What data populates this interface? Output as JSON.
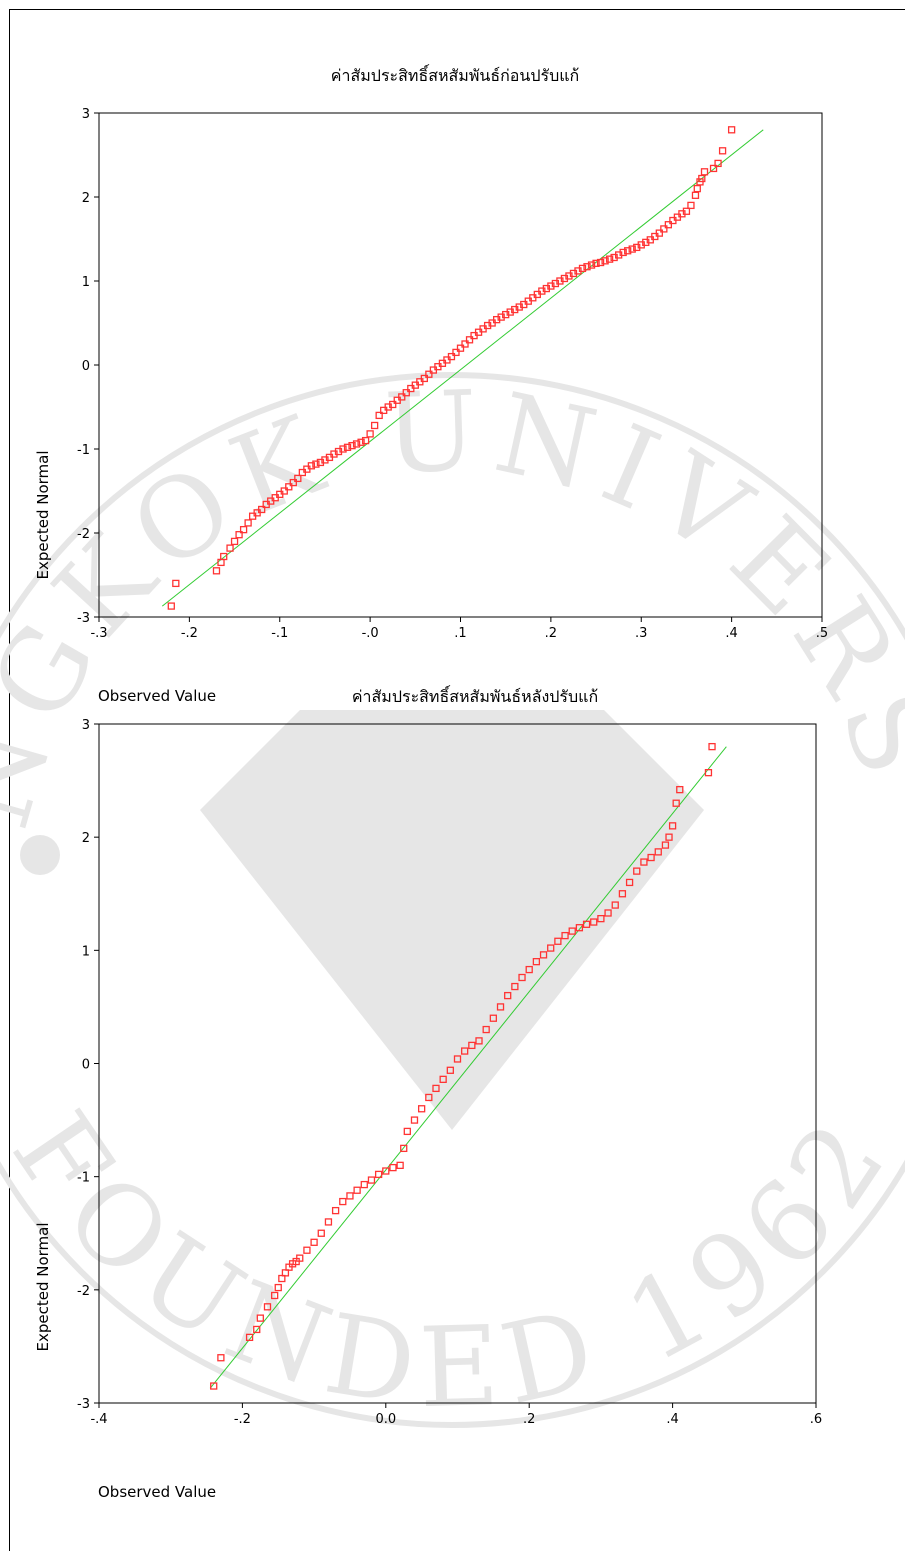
{
  "watermark": {
    "logo_color": "#e6e6e6",
    "text_top": "BANGKOK UNIVERSITY",
    "text_bottom": "FOUNDED 1962"
  },
  "chart_data": [
    {
      "type": "scatter",
      "title": "ค่าสัมประสิทธิ์สหสัมพันธ์ก่อนปรับแก้",
      "xlabel": "Observed Value",
      "ylabel": "Expected Normal",
      "xlim": [
        -0.3,
        0.5
      ],
      "ylim": [
        -3,
        3
      ],
      "xticks": [
        -0.3,
        -0.2,
        -0.1,
        0.0,
        0.1,
        0.2,
        0.3,
        0.4,
        0.5
      ],
      "xtick_labels": [
        "-.3",
        "-.2",
        "-.1",
        "-.0",
        ".1",
        ".2",
        ".3",
        ".4",
        ".5"
      ],
      "yticks": [
        -3,
        -2,
        -1,
        0,
        1,
        2,
        3
      ],
      "ytick_labels": [
        "-3",
        "-2",
        "-1",
        "0",
        "1",
        "2",
        "3"
      ],
      "grid": false,
      "reference_line": {
        "x": [
          -0.23,
          0.435
        ],
        "y": [
          -2.87,
          2.8
        ],
        "color": "#33cc33"
      },
      "marker_color": "#ff3333",
      "points": {
        "x": [
          -0.22,
          -0.215,
          -0.17,
          -0.165,
          -0.162,
          -0.155,
          -0.15,
          -0.145,
          -0.14,
          -0.135,
          -0.13,
          -0.125,
          -0.12,
          -0.115,
          -0.11,
          -0.105,
          -0.1,
          -0.095,
          -0.09,
          -0.085,
          -0.08,
          -0.075,
          -0.07,
          -0.065,
          -0.06,
          -0.055,
          -0.05,
          -0.045,
          -0.04,
          -0.035,
          -0.03,
          -0.025,
          -0.02,
          -0.015,
          -0.01,
          -0.005,
          0.0,
          0.005,
          0.01,
          0.015,
          0.02,
          0.025,
          0.03,
          0.035,
          0.04,
          0.045,
          0.05,
          0.055,
          0.06,
          0.065,
          0.07,
          0.075,
          0.08,
          0.085,
          0.09,
          0.095,
          0.1,
          0.105,
          0.11,
          0.115,
          0.12,
          0.125,
          0.13,
          0.135,
          0.14,
          0.145,
          0.15,
          0.155,
          0.16,
          0.165,
          0.17,
          0.175,
          0.18,
          0.185,
          0.19,
          0.195,
          0.2,
          0.205,
          0.21,
          0.215,
          0.22,
          0.225,
          0.23,
          0.235,
          0.24,
          0.245,
          0.25,
          0.255,
          0.26,
          0.265,
          0.27,
          0.275,
          0.28,
          0.285,
          0.29,
          0.295,
          0.3,
          0.305,
          0.31,
          0.315,
          0.32,
          0.325,
          0.33,
          0.335,
          0.34,
          0.345,
          0.35,
          0.355,
          0.36,
          0.362,
          0.365,
          0.367,
          0.37,
          0.38,
          0.385,
          0.39,
          0.4
        ],
        "y": [
          -2.87,
          -2.6,
          -2.45,
          -2.35,
          -2.28,
          -2.18,
          -2.1,
          -2.02,
          -1.96,
          -1.88,
          -1.8,
          -1.76,
          -1.72,
          -1.66,
          -1.62,
          -1.58,
          -1.54,
          -1.5,
          -1.45,
          -1.4,
          -1.35,
          -1.28,
          -1.24,
          -1.2,
          -1.18,
          -1.16,
          -1.13,
          -1.1,
          -1.06,
          -1.03,
          -1.0,
          -0.98,
          -0.96,
          -0.94,
          -0.92,
          -0.9,
          -0.82,
          -0.72,
          -0.6,
          -0.54,
          -0.5,
          -0.47,
          -0.42,
          -0.38,
          -0.33,
          -0.28,
          -0.24,
          -0.2,
          -0.16,
          -0.11,
          -0.06,
          -0.02,
          0.02,
          0.06,
          0.1,
          0.15,
          0.2,
          0.25,
          0.3,
          0.35,
          0.39,
          0.43,
          0.47,
          0.5,
          0.54,
          0.57,
          0.6,
          0.63,
          0.66,
          0.69,
          0.72,
          0.76,
          0.8,
          0.84,
          0.88,
          0.91,
          0.94,
          0.97,
          1.0,
          1.03,
          1.06,
          1.09,
          1.12,
          1.15,
          1.17,
          1.19,
          1.21,
          1.22,
          1.24,
          1.26,
          1.28,
          1.31,
          1.34,
          1.36,
          1.38,
          1.4,
          1.43,
          1.46,
          1.49,
          1.53,
          1.57,
          1.62,
          1.67,
          1.72,
          1.76,
          1.8,
          1.83,
          1.9,
          2.02,
          2.1,
          2.18,
          2.22,
          2.3,
          2.34,
          2.4,
          2.55,
          2.8
        ]
      }
    },
    {
      "type": "scatter",
      "title": "ค่าสัมประสิทธิ์สหสัมพันธ์หลังปรับแก้",
      "xlabel": "Observed Value",
      "ylabel": "Expected Normal",
      "xlim": [
        -0.4,
        0.6
      ],
      "ylim": [
        -3,
        3
      ],
      "xticks": [
        -0.4,
        -0.2,
        0.0,
        0.2,
        0.4,
        0.6
      ],
      "xtick_labels": [
        "-.4",
        "-.2",
        "0.0",
        ".2",
        ".4",
        ".6"
      ],
      "yticks": [
        -3,
        -2,
        -1,
        0,
        1,
        2,
        3
      ],
      "ytick_labels": [
        "-3",
        "-2",
        "-1",
        "0",
        "1",
        "2",
        "3"
      ],
      "grid": false,
      "reference_line": {
        "x": [
          -0.245,
          0.475
        ],
        "y": [
          -2.87,
          2.8
        ],
        "color": "#33cc33"
      },
      "marker_color": "#ff3333",
      "points": {
        "x": [
          -0.24,
          -0.23,
          -0.19,
          -0.18,
          -0.175,
          -0.165,
          -0.155,
          -0.15,
          -0.145,
          -0.14,
          -0.135,
          -0.13,
          -0.125,
          -0.12,
          -0.11,
          -0.1,
          -0.09,
          -0.08,
          -0.07,
          -0.06,
          -0.05,
          -0.04,
          -0.03,
          -0.02,
          -0.01,
          0.0,
          0.01,
          0.02,
          0.025,
          0.03,
          0.04,
          0.05,
          0.06,
          0.07,
          0.08,
          0.09,
          0.1,
          0.11,
          0.12,
          0.13,
          0.14,
          0.15,
          0.16,
          0.17,
          0.18,
          0.19,
          0.2,
          0.21,
          0.22,
          0.23,
          0.24,
          0.25,
          0.26,
          0.27,
          0.28,
          0.29,
          0.3,
          0.31,
          0.32,
          0.33,
          0.34,
          0.35,
          0.36,
          0.37,
          0.38,
          0.39,
          0.395,
          0.4,
          0.405,
          0.41,
          0.45,
          0.455
        ],
        "y": [
          -2.85,
          -2.6,
          -2.42,
          -2.35,
          -2.25,
          -2.15,
          -2.05,
          -1.98,
          -1.9,
          -1.85,
          -1.8,
          -1.77,
          -1.75,
          -1.72,
          -1.65,
          -1.58,
          -1.5,
          -1.4,
          -1.3,
          -1.22,
          -1.17,
          -1.12,
          -1.07,
          -1.03,
          -0.98,
          -0.95,
          -0.92,
          -0.9,
          -0.75,
          -0.6,
          -0.5,
          -0.4,
          -0.3,
          -0.22,
          -0.14,
          -0.06,
          0.04,
          0.11,
          0.16,
          0.2,
          0.3,
          0.4,
          0.5,
          0.6,
          0.68,
          0.76,
          0.83,
          0.9,
          0.96,
          1.02,
          1.08,
          1.13,
          1.17,
          1.2,
          1.23,
          1.25,
          1.28,
          1.33,
          1.4,
          1.5,
          1.6,
          1.7,
          1.78,
          1.82,
          1.87,
          1.93,
          2.0,
          2.1,
          2.3,
          2.42,
          2.57,
          2.8
        ]
      }
    }
  ]
}
